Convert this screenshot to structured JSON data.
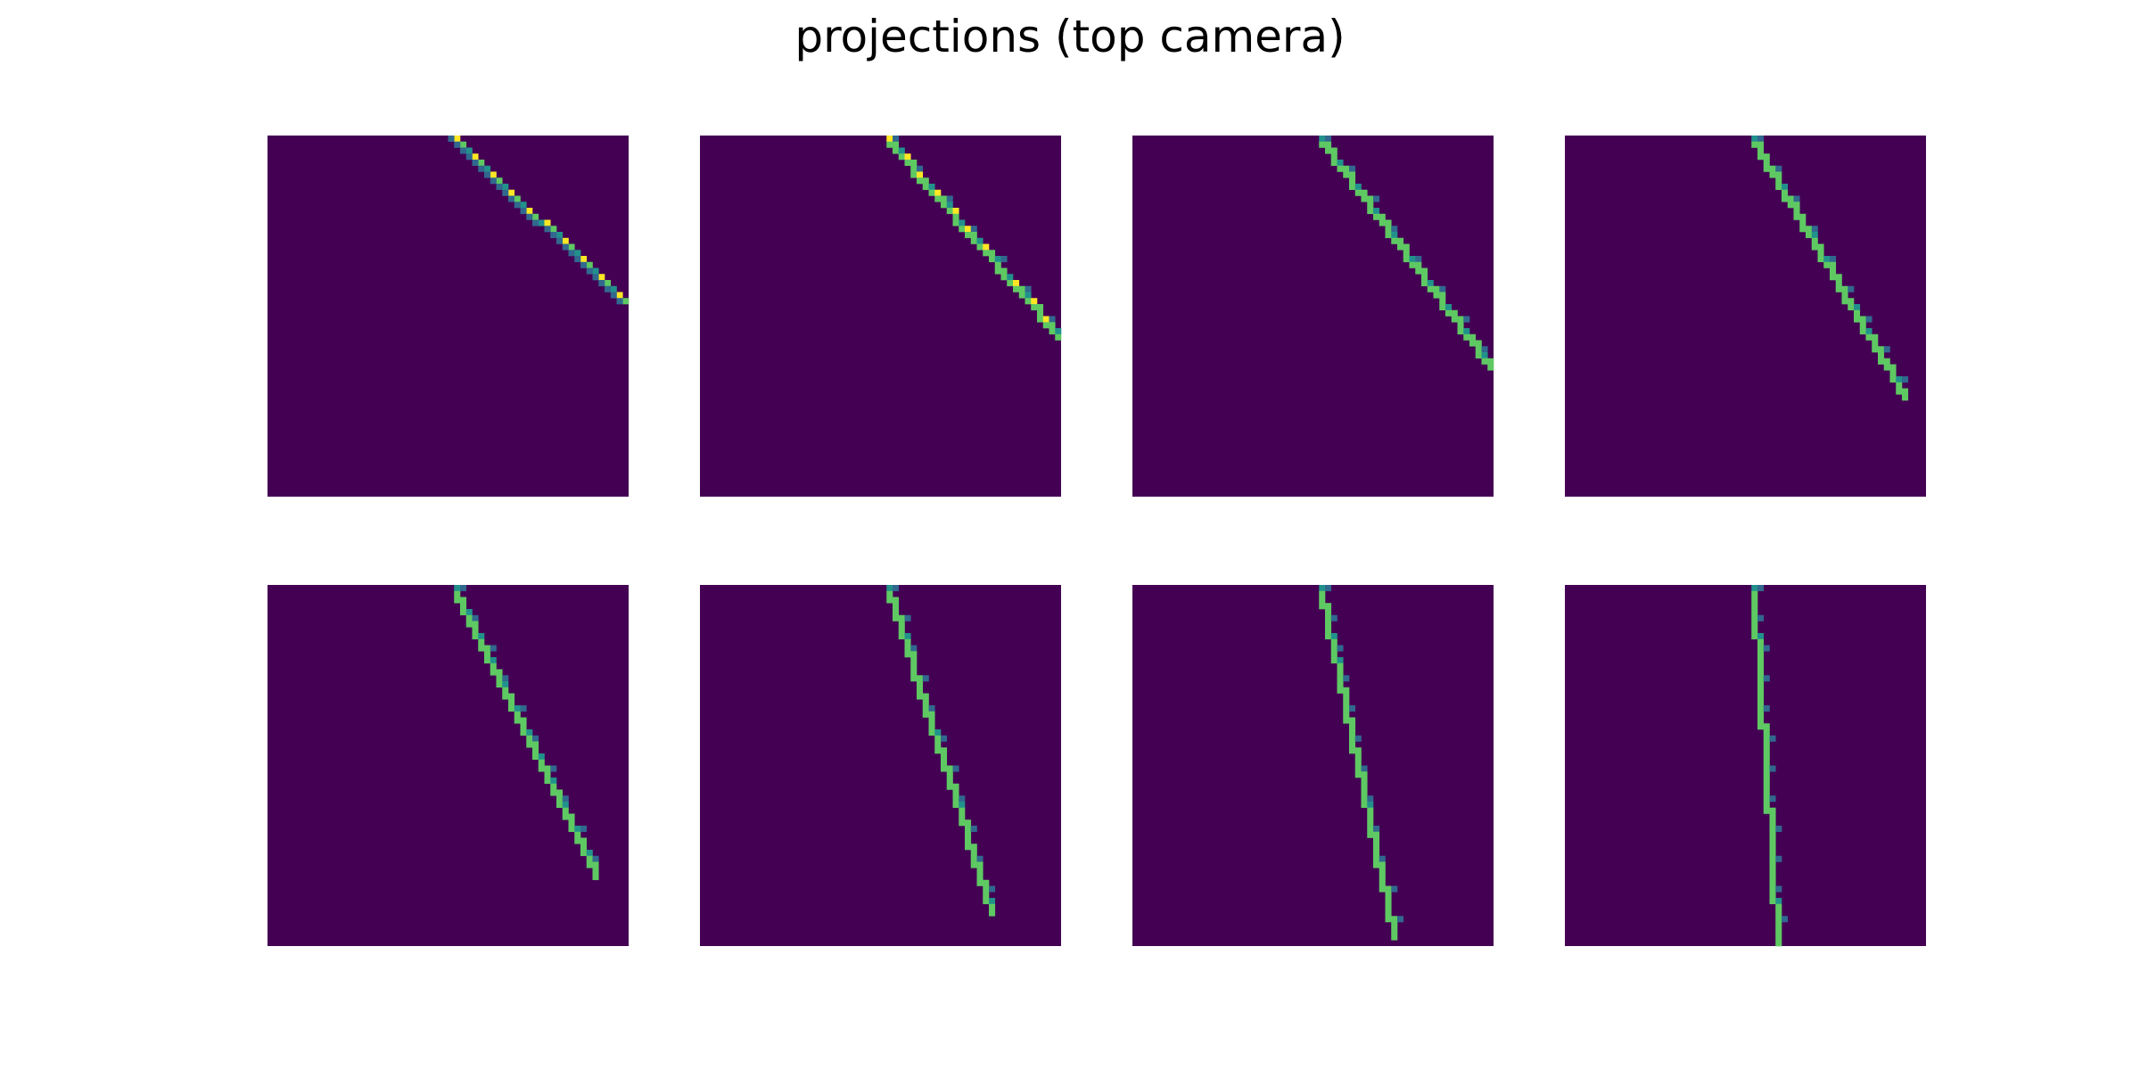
{
  "title": "projections (top camera)",
  "colors": {
    "background": "#440154",
    "low": "#31688e",
    "mid": "#21918c",
    "high": "#5ec962",
    "peak": "#fde725"
  },
  "chart_data": {
    "type": "heatmap",
    "title": "projections (top camera)",
    "grid_size": 60,
    "colormap": "viridis",
    "axes_visible": false,
    "layout": {
      "rows": 2,
      "cols": 4
    },
    "panels": [
      {
        "index": 1,
        "row": 1,
        "col": 1,
        "line": {
          "x_start": 31,
          "y_start": 0,
          "x_end": 59,
          "y_end": 27
        },
        "intensity": "high"
      },
      {
        "index": 2,
        "row": 1,
        "col": 2,
        "line": {
          "x_start": 31,
          "y_start": 0,
          "x_end": 59,
          "y_end": 32
        },
        "intensity": "high"
      },
      {
        "index": 3,
        "row": 1,
        "col": 3,
        "line": {
          "x_start": 31,
          "y_start": 0,
          "x_end": 59,
          "y_end": 37
        },
        "intensity": "medium"
      },
      {
        "index": 4,
        "row": 1,
        "col": 4,
        "line": {
          "x_start": 31,
          "y_start": 0,
          "x_end": 56,
          "y_end": 42
        },
        "intensity": "medium"
      },
      {
        "index": 5,
        "row": 2,
        "col": 1,
        "line": {
          "x_start": 31,
          "y_start": 0,
          "x_end": 54,
          "y_end": 47
        },
        "intensity": "medium"
      },
      {
        "index": 6,
        "row": 2,
        "col": 2,
        "line": {
          "x_start": 31,
          "y_start": 0,
          "x_end": 48,
          "y_end": 53
        },
        "intensity": "medium"
      },
      {
        "index": 7,
        "row": 2,
        "col": 3,
        "line": {
          "x_start": 31,
          "y_start": 0,
          "x_end": 43,
          "y_end": 57
        },
        "intensity": "medium"
      },
      {
        "index": 8,
        "row": 2,
        "col": 4,
        "line": {
          "x_start": 31,
          "y_start": 0,
          "x_end": 35,
          "y_end": 59
        },
        "intensity": "medium"
      }
    ]
  }
}
